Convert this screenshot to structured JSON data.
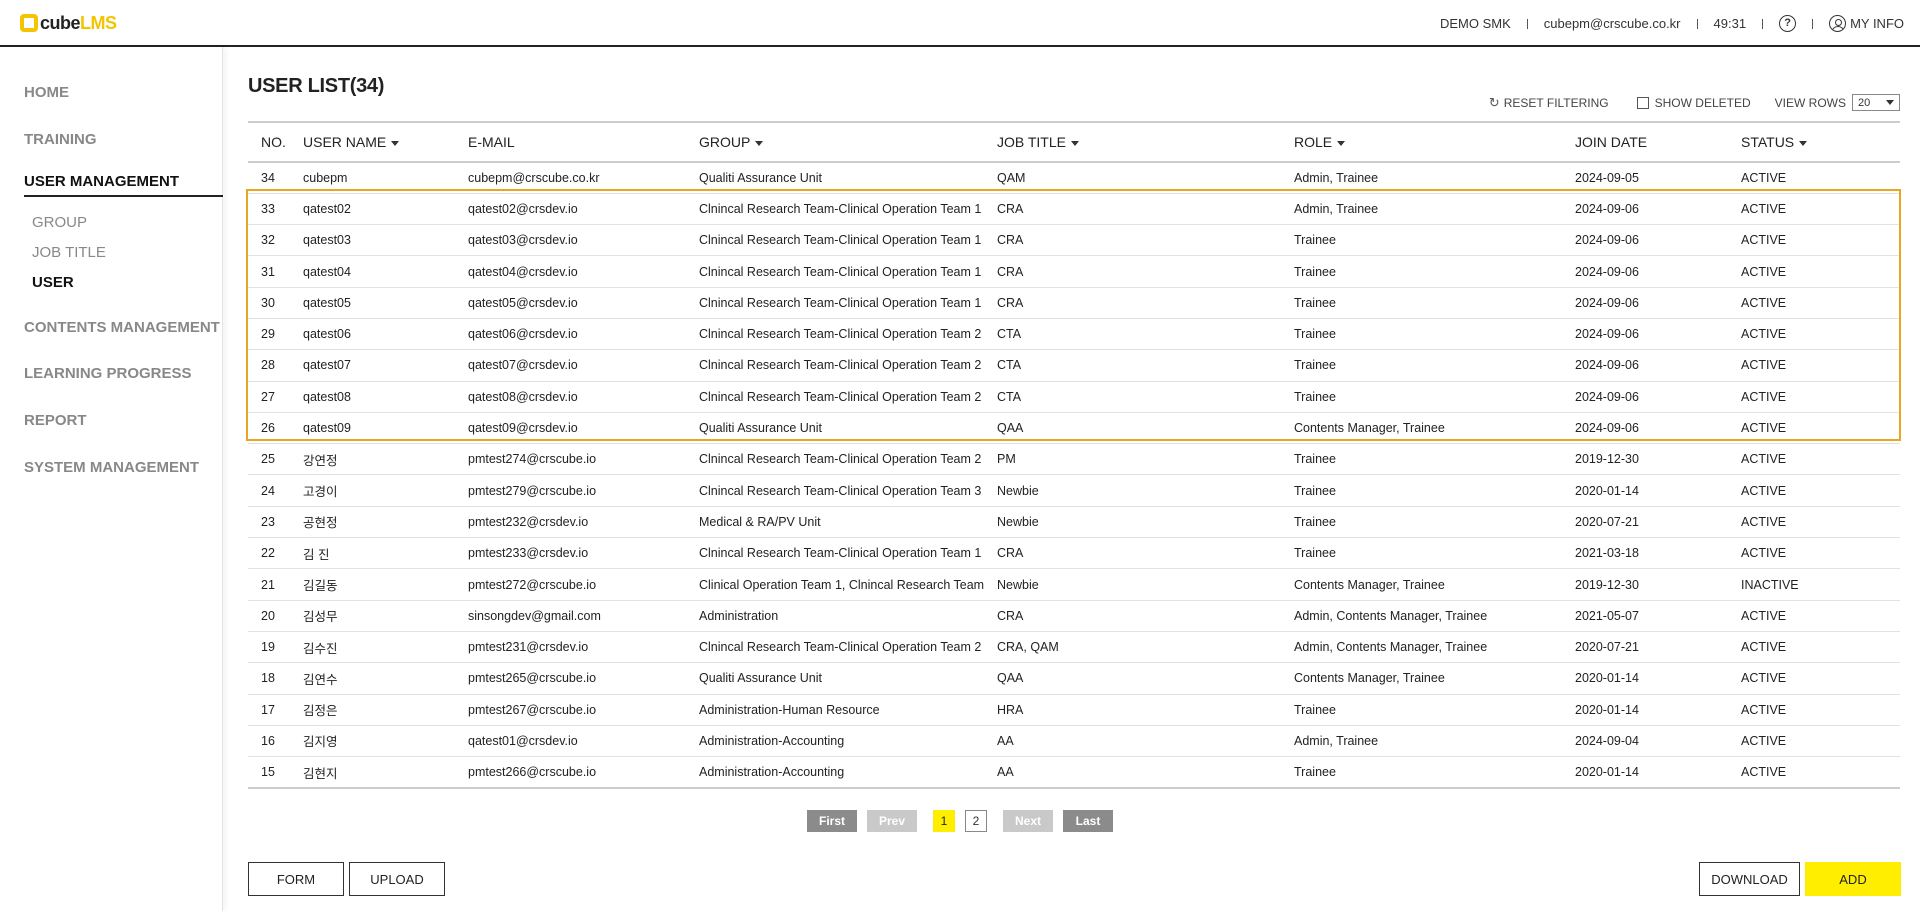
{
  "header": {
    "logo_cube": "cube",
    "logo_lms": "LMS",
    "org": "DEMO SMK",
    "email": "cubepm@crscube.co.kr",
    "timer": "49:31",
    "help_glyph": "?",
    "myinfo_label": "MY INFO"
  },
  "sidebar": {
    "items": [
      {
        "label": "HOME"
      },
      {
        "label": "TRAINING"
      },
      {
        "label": "USER MANAGEMENT"
      },
      {
        "label": "CONTENTS MANAGEMENT"
      },
      {
        "label": "LEARNING PROGRESS"
      },
      {
        "label": "REPORT"
      },
      {
        "label": "SYSTEM MANAGEMENT"
      }
    ],
    "sub_items": [
      {
        "label": "GROUP"
      },
      {
        "label": "JOB TITLE"
      },
      {
        "label": "USER"
      }
    ]
  },
  "page": {
    "title": "USER LIST(34)"
  },
  "toolbar": {
    "reset_label": "RESET FILTERING",
    "show_deleted_label": "SHOW DELETED",
    "view_rows_label": "VIEW ROWS",
    "view_rows_value": "20"
  },
  "table": {
    "columns": [
      {
        "label": "NO."
      },
      {
        "label": "USER NAME"
      },
      {
        "label": "E-MAIL"
      },
      {
        "label": "GROUP"
      },
      {
        "label": "JOB TITLE"
      },
      {
        "label": "ROLE"
      },
      {
        "label": "JOIN DATE"
      },
      {
        "label": "STATUS"
      }
    ],
    "rows": [
      [
        "34",
        "cubepm",
        "cubepm@crscube.co.kr",
        "Qualiti Assurance Unit",
        "QAM",
        "Admin, Trainee",
        "2024-09-05",
        "ACTIVE"
      ],
      [
        "33",
        "qatest02",
        "qatest02@crsdev.io",
        "Clnincal Research Team-Clinical Operation Team 1",
        "CRA",
        "Admin, Trainee",
        "2024-09-06",
        "ACTIVE"
      ],
      [
        "32",
        "qatest03",
        "qatest03@crsdev.io",
        "Clnincal Research Team-Clinical Operation Team 1",
        "CRA",
        "Trainee",
        "2024-09-06",
        "ACTIVE"
      ],
      [
        "31",
        "qatest04",
        "qatest04@crsdev.io",
        "Clnincal Research Team-Clinical Operation Team 1",
        "CRA",
        "Trainee",
        "2024-09-06",
        "ACTIVE"
      ],
      [
        "30",
        "qatest05",
        "qatest05@crsdev.io",
        "Clnincal Research Team-Clinical Operation Team 1",
        "CRA",
        "Trainee",
        "2024-09-06",
        "ACTIVE"
      ],
      [
        "29",
        "qatest06",
        "qatest06@crsdev.io",
        "Clnincal Research Team-Clinical Operation Team 2",
        "CTA",
        "Trainee",
        "2024-09-06",
        "ACTIVE"
      ],
      [
        "28",
        "qatest07",
        "qatest07@crsdev.io",
        "Clnincal Research Team-Clinical Operation Team 2",
        "CTA",
        "Trainee",
        "2024-09-06",
        "ACTIVE"
      ],
      [
        "27",
        "qatest08",
        "qatest08@crsdev.io",
        "Clnincal Research Team-Clinical Operation Team 2",
        "CTA",
        "Trainee",
        "2024-09-06",
        "ACTIVE"
      ],
      [
        "26",
        "qatest09",
        "qatest09@crsdev.io",
        "Qualiti Assurance Unit",
        "QAA",
        "Contents Manager, Trainee",
        "2024-09-06",
        "ACTIVE"
      ],
      [
        "25",
        "강연정",
        "pmtest274@crscube.io",
        "Clnincal Research Team-Clinical Operation Team 2",
        "PM",
        "Trainee",
        "2019-12-30",
        "ACTIVE"
      ],
      [
        "24",
        "고경이",
        "pmtest279@crscube.io",
        "Clnincal Research Team-Clinical Operation Team 3",
        "Newbie",
        "Trainee",
        "2020-01-14",
        "ACTIVE"
      ],
      [
        "23",
        "공현정",
        "pmtest232@crsdev.io",
        "Medical & RA/PV Unit",
        "Newbie",
        "Trainee",
        "2020-07-21",
        "ACTIVE"
      ],
      [
        "22",
        "김 진",
        "pmtest233@crsdev.io",
        "Clnincal Research Team-Clinical Operation Team 1",
        "CRA",
        "Trainee",
        "2021-03-18",
        "ACTIVE"
      ],
      [
        "21",
        "김길동",
        "pmtest272@crscube.io",
        "Clinical Operation Team 1, Clnincal Research Team",
        "Newbie",
        "Contents Manager, Trainee",
        "2019-12-30",
        "INACTIVE"
      ],
      [
        "20",
        "김성무",
        "sinsongdev@gmail.com",
        "Administration",
        "CRA",
        "Admin, Contents Manager, Trainee",
        "2021-05-07",
        "ACTIVE"
      ],
      [
        "19",
        "김수진",
        "pmtest231@crsdev.io",
        "Clnincal Research Team-Clinical Operation Team 2",
        "CRA, QAM",
        "Admin, Contents Manager, Trainee",
        "2020-07-21",
        "ACTIVE"
      ],
      [
        "18",
        "김연수",
        "pmtest265@crscube.io",
        "Qualiti Assurance Unit",
        "QAA",
        "Contents Manager, Trainee",
        "2020-01-14",
        "ACTIVE"
      ],
      [
        "17",
        "김정은",
        "pmtest267@crscube.io",
        "Administration-Human Resource",
        "HRA",
        "Trainee",
        "2020-01-14",
        "ACTIVE"
      ],
      [
        "16",
        "김지영",
        "qatest01@crsdev.io",
        "Administration-Accounting",
        "AA",
        "Admin, Trainee",
        "2024-09-04",
        "ACTIVE"
      ],
      [
        "15",
        "김현지",
        "pmtest266@crscube.io",
        "Administration-Accounting",
        "AA",
        "Trainee",
        "2020-01-14",
        "ACTIVE"
      ]
    ]
  },
  "pagination": {
    "first": "First",
    "prev": "Prev",
    "pages": [
      "1",
      "2"
    ],
    "next": "Next",
    "last": "Last"
  },
  "buttons": {
    "form": "FORM",
    "upload": "UPLOAD",
    "download": "DOWNLOAD",
    "add": "ADD"
  }
}
